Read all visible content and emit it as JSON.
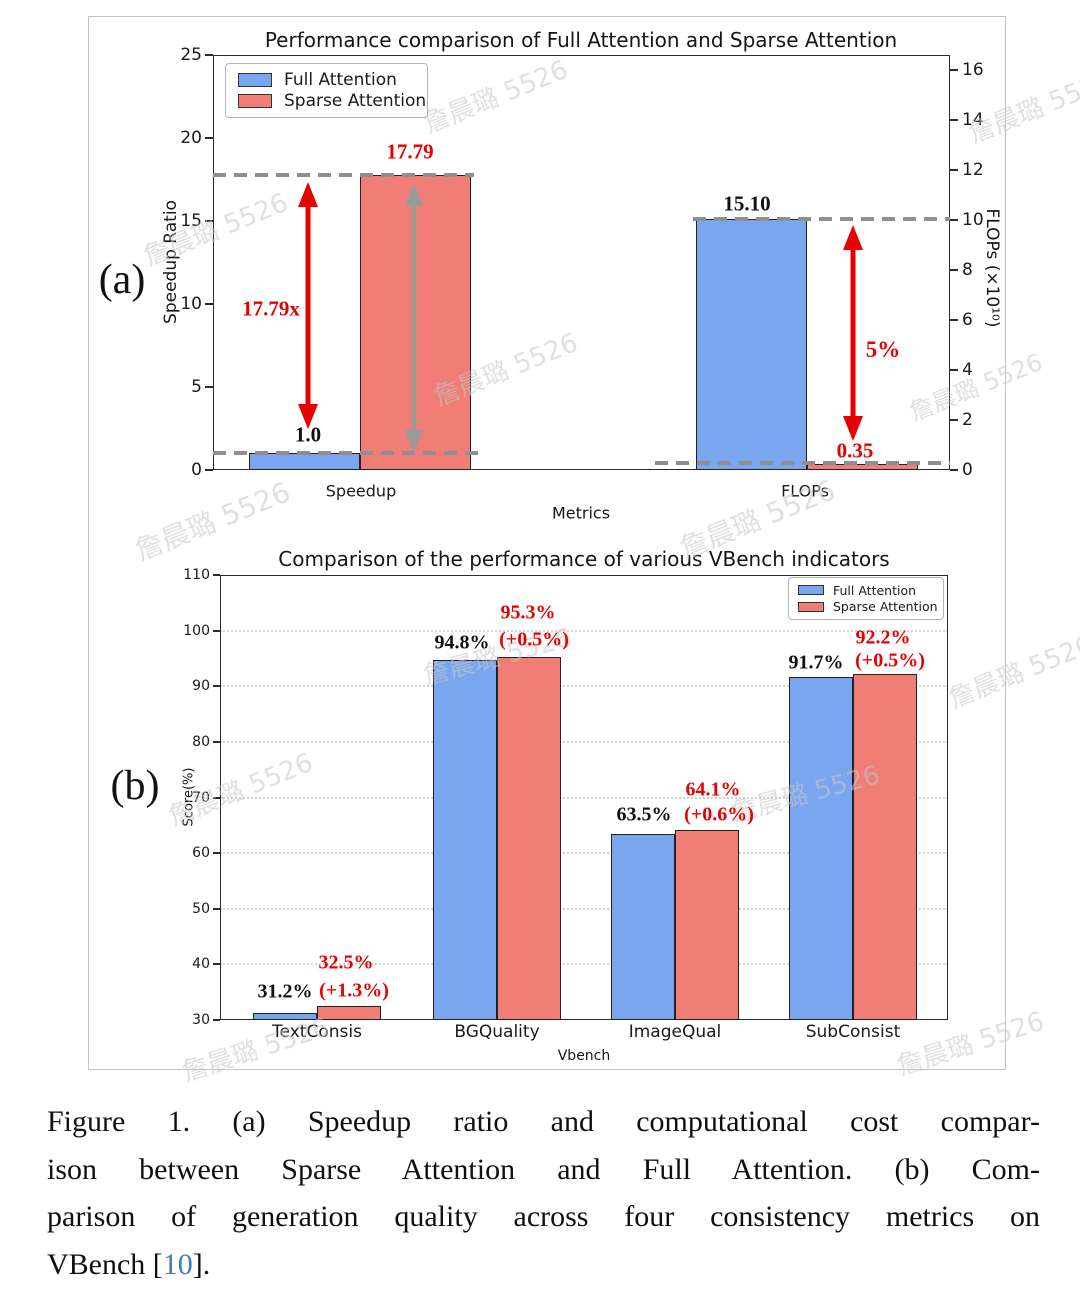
{
  "figure": {
    "watermark_text": "詹晨璐 5526",
    "panel_a_label": "(a)",
    "panel_b_label": "(b)"
  },
  "chart_data": [
    {
      "id": "speedup-flops",
      "type": "bar",
      "title": "Performance comparison of Full Attention and Sparse Attention",
      "categories": [
        "Speedup",
        "FLOPs"
      ],
      "series": [
        {
          "name": "Full Attention",
          "color": "#7aa6f0",
          "values": [
            1.0,
            15.1
          ]
        },
        {
          "name": "Sparse Attention",
          "color": "#f07d76",
          "values": [
            17.79,
            0.35
          ]
        }
      ],
      "xlabel": "Metrics",
      "ylabel_left": "Speedup Ratio",
      "ylabel_right": "FLOPs (×10¹⁰)",
      "ylim_left": [
        0,
        25
      ],
      "yticks_left": [
        0,
        5,
        10,
        15,
        20,
        25
      ],
      "ylim_right": [
        0,
        16.6
      ],
      "yticks_right": [
        0,
        2,
        4,
        6,
        8,
        10,
        12,
        14,
        16
      ],
      "legend_position": "upper left",
      "grid": false,
      "annotations": [
        {
          "text": "1.0",
          "color": "#111111"
        },
        {
          "text": "17.79",
          "color": "#e60000"
        },
        {
          "text": "15.10",
          "color": "#111111"
        },
        {
          "text": "0.35",
          "color": "#e60000"
        },
        {
          "text": "17.79x",
          "color": "#e60000"
        },
        {
          "text": "5%",
          "color": "#e60000"
        }
      ]
    },
    {
      "id": "vbench",
      "type": "bar",
      "title": "Comparison of the performance of various VBench indicators",
      "categories": [
        "TextConsis",
        "BGQuality",
        "ImageQual",
        "SubConsist"
      ],
      "series": [
        {
          "name": "Full Attention",
          "color": "#7aa6f0",
          "values": [
            31.2,
            94.8,
            63.5,
            91.7
          ]
        },
        {
          "name": "Sparse Attention",
          "color": "#f07d76",
          "values": [
            32.5,
            95.3,
            64.1,
            92.2
          ]
        }
      ],
      "value_labels_full": [
        "31.2%",
        "94.8%",
        "63.5%",
        "91.7%"
      ],
      "value_labels_sparse": [
        "32.5%",
        "95.3%",
        "64.1%",
        "92.2%"
      ],
      "value_labels_delta": [
        "(+1.3%)",
        "(+0.5%)",
        "(+0.6%)",
        "(+0.5%)"
      ],
      "label_color_full": "#111111",
      "label_color_sparse": "#e60000",
      "xlabel": "Vbench",
      "ylabel": "Score(%)",
      "ylim": [
        30,
        110
      ],
      "yticks": [
        30,
        40,
        50,
        60,
        70,
        80,
        90,
        100,
        110
      ],
      "legend_position": "upper right",
      "grid": true
    }
  ],
  "caption": {
    "lines": [
      "Figure 1.  (a) Speedup ratio and computational cost compar-",
      "ison between Sparse Attention and Full Attention.  (b) Com-",
      "parison of generation quality across four consistency metrics on"
    ],
    "last_line_prefix": "VBench [",
    "citation": "10",
    "last_line_suffix": "].",
    "citation_color": "#4178be"
  }
}
